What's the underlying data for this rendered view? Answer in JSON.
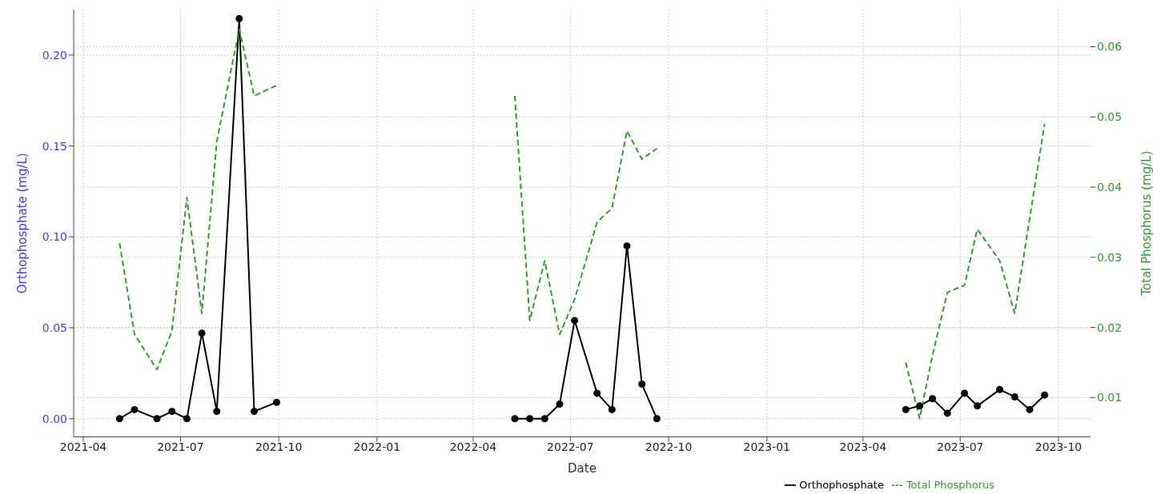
{
  "chart_data": {
    "type": "line",
    "xlabel": "Date",
    "ylabel": "Orthophosphate (mg/L)",
    "y2label": "Total Phosphorus (mg/L)",
    "x": [
      "2021-05-05",
      "2021-05-19",
      "2021-06-09",
      "2021-06-23",
      "2021-07-07",
      "2021-07-21",
      "2021-08-04",
      "2021-08-25",
      "2021-09-08",
      "2021-09-29",
      "2022-01-15",
      "2022-05-10",
      "2022-05-24",
      "2022-06-07",
      "2022-06-21",
      "2022-07-05",
      "2022-07-26",
      "2022-08-09",
      "2022-08-23",
      "2022-09-06",
      "2022-09-20",
      "2023-01-15",
      "2023-05-11",
      "2023-05-24",
      "2023-06-05",
      "2023-06-19",
      "2023-07-05",
      "2023-07-17",
      "2023-08-07",
      "2023-08-21",
      "2023-09-04",
      "2023-09-18"
    ],
    "series": [
      {
        "name": "Orthophosphate",
        "color": "#000000",
        "marker": "circle",
        "line_style": "solid",
        "values": [
          0,
          0.005,
          0,
          0.004,
          0,
          0.047,
          0.004,
          0.22,
          0.004,
          0.009,
          null,
          0,
          0,
          0,
          0.008,
          0.054,
          0.014,
          0.005,
          0.095,
          0.019,
          0,
          null,
          0.005,
          0.007,
          0.011,
          0.003,
          0.014,
          0.007,
          0.016,
          0.012,
          0.005,
          0.013
        ]
      },
      {
        "name": "Total Phosphorus",
        "color": "#2ca02c",
        "axis": "y2",
        "marker": "none",
        "line_style": "dashed",
        "values": [
          0.032,
          0.019,
          0.014,
          0.0195,
          0.0385,
          0.022,
          0.0465,
          0.0625,
          0.053,
          0.0545,
          null,
          0.053,
          0.021,
          0.0295,
          0.019,
          0.024,
          0.035,
          0.037,
          0.048,
          0.044,
          0.0455,
          null,
          0.015,
          0.007,
          0.016,
          0.025,
          0.026,
          0.034,
          0.0295,
          0.022,
          0.0355,
          0.049
        ]
      }
    ],
    "xlim": [
      "2021-03-23",
      "2023-10-31"
    ],
    "xticks": [
      {
        "value": "2021-04-01",
        "label": "2021-04"
      },
      {
        "value": "2021-07-01",
        "label": "2021-07"
      },
      {
        "value": "2021-10-01",
        "label": "2021-10"
      },
      {
        "value": "2022-01-01",
        "label": "2022-01"
      },
      {
        "value": "2022-04-01",
        "label": "2022-04"
      },
      {
        "value": "2022-07-01",
        "label": "2022-07"
      },
      {
        "value": "2022-10-01",
        "label": "2022-10"
      },
      {
        "value": "2023-01-01",
        "label": "2023-01"
      },
      {
        "value": "2023-04-01",
        "label": "2023-04"
      },
      {
        "value": "2023-07-01",
        "label": "2023-07"
      },
      {
        "value": "2023-10-01",
        "label": "2023-10"
      }
    ],
    "ylim": [
      -0.01,
      0.225
    ],
    "yticks": [
      {
        "value": 0,
        "label": "0.00"
      },
      {
        "value": 0.05,
        "label": "0.05"
      },
      {
        "value": 0.1,
        "label": "0.10"
      },
      {
        "value": 0.15,
        "label": "0.15"
      },
      {
        "value": 0.2,
        "label": "0.20"
      }
    ],
    "y2lim": [
      0.0044,
      0.0653
    ],
    "y2ticks": [
      0.01,
      0.02,
      0.03,
      0.04,
      0.05,
      0.06
    ],
    "grid": true,
    "legend": "bottom right"
  }
}
